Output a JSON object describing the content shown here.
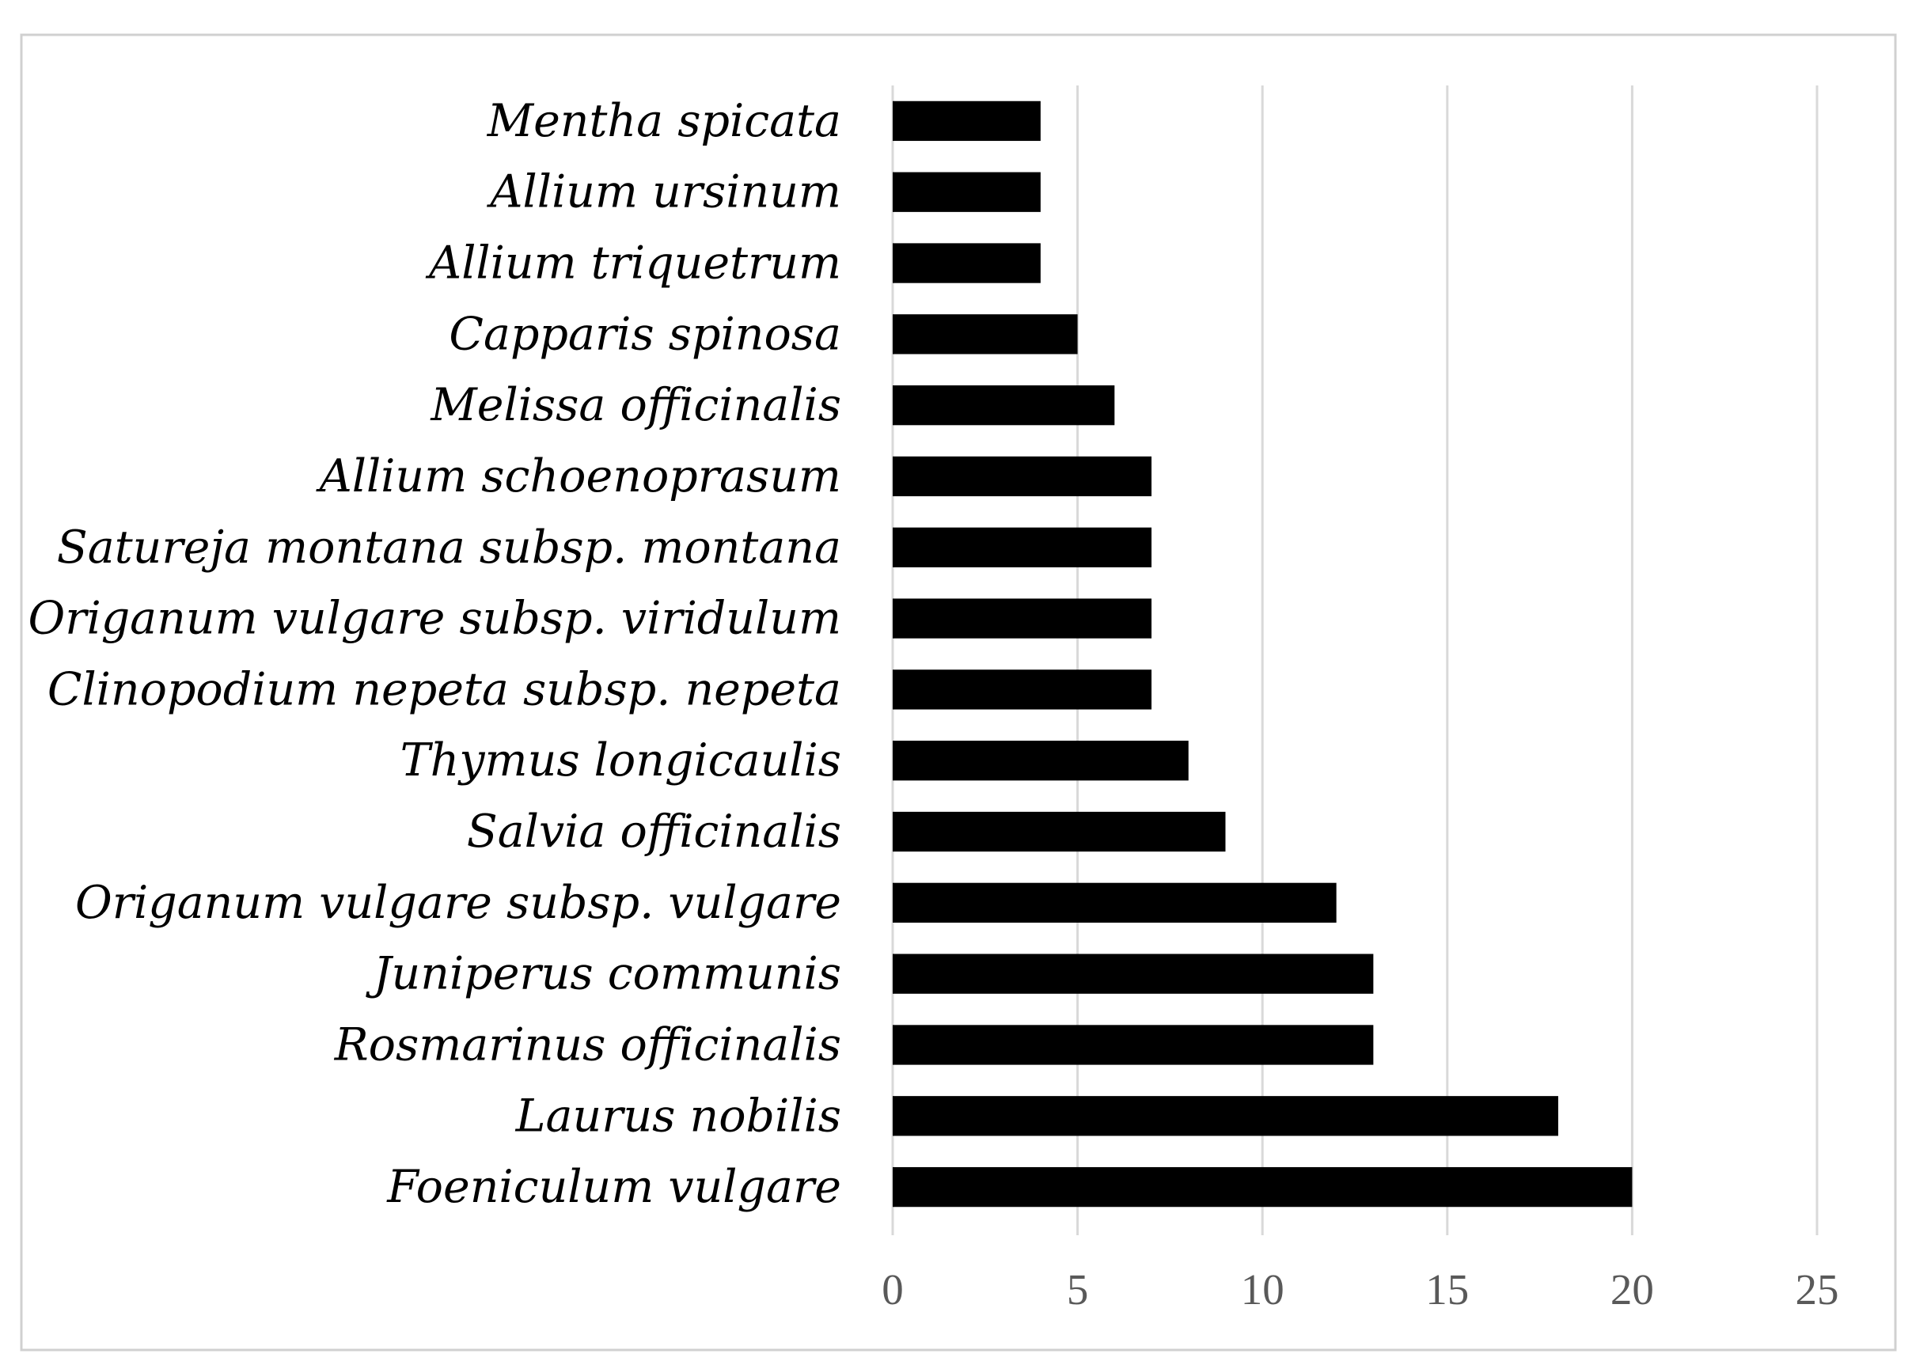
{
  "chart_data": {
    "type": "bar",
    "orientation": "horizontal",
    "title": "",
    "xlabel": "",
    "ylabel": "",
    "categories": [
      "Foeniculum vulgare",
      "Laurus nobilis",
      "Rosmarinus officinalis",
      "Juniperus communis",
      "Origanum vulgare subsp. vulgare",
      "Salvia officinalis",
      "Thymus longicaulis",
      "Clinopodium nepeta subsp. nepeta",
      "Origanum vulgare subsp. viridulum",
      "Satureja montana subsp. montana",
      "Allium schoenoprasum",
      "Melissa officinalis",
      "Capparis spinosa",
      "Allium triquetrum",
      "Allium ursinum",
      "Mentha spicata"
    ],
    "values": [
      20,
      18,
      13,
      13,
      12,
      9,
      8,
      7,
      7,
      7,
      7,
      6,
      5,
      4,
      4,
      4
    ],
    "xlim": [
      0,
      25
    ],
    "xticks": [
      "0",
      "5",
      "10",
      "15",
      "20",
      "25"
    ],
    "grid": "vertical",
    "legend": "none",
    "bar_color": "#000000",
    "grid_color": "#d9d9d9",
    "border_color": "#d0d0d0"
  }
}
